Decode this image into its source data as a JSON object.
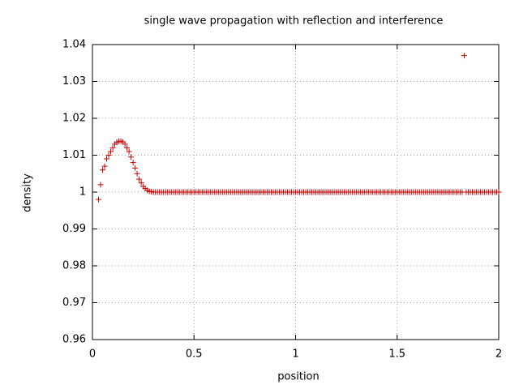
{
  "chart_data": {
    "type": "scatter",
    "title": "single wave propagation with reflection and interference",
    "xlabel": "position",
    "ylabel": "density",
    "color": "#cc0000",
    "grid": true,
    "xlim": [
      0,
      2
    ],
    "ylim": [
      0.96,
      1.04
    ],
    "xticks": [
      0,
      0.5,
      1,
      1.5,
      2
    ],
    "yticks": [
      0.96,
      0.97,
      0.98,
      0.99,
      1,
      1.01,
      1.02,
      1.03,
      1.04
    ],
    "x": [
      0.03,
      0.04,
      0.05,
      0.06,
      0.07,
      0.08,
      0.09,
      0.1,
      0.11,
      0.12,
      0.13,
      0.14,
      0.15,
      0.16,
      0.17,
      0.18,
      0.19,
      0.2,
      0.21,
      0.22,
      0.23,
      0.24,
      0.25,
      0.26,
      0.27,
      0.28,
      0.29,
      0.3,
      0.31,
      0.32,
      0.33,
      0.34,
      0.35,
      0.36,
      0.37,
      0.38,
      0.39,
      0.4,
      0.41,
      0.42,
      0.43,
      0.44,
      0.45,
      0.46,
      0.47,
      0.48,
      0.49,
      0.5,
      0.51,
      0.52,
      0.53,
      0.54,
      0.55,
      0.56,
      0.57,
      0.58,
      0.59,
      0.6,
      0.61,
      0.62,
      0.63,
      0.64,
      0.65,
      0.66,
      0.67,
      0.68,
      0.69,
      0.7,
      0.71,
      0.72,
      0.73,
      0.74,
      0.75,
      0.76,
      0.77,
      0.78,
      0.79,
      0.8,
      0.81,
      0.82,
      0.83,
      0.84,
      0.85,
      0.86,
      0.87,
      0.88,
      0.89,
      0.9,
      0.91,
      0.92,
      0.93,
      0.94,
      0.95,
      0.96,
      0.97,
      0.98,
      0.99,
      1,
      1.01,
      1.02,
      1.03,
      1.04,
      1.05,
      1.06,
      1.07,
      1.08,
      1.09,
      1.1,
      1.11,
      1.12,
      1.13,
      1.14,
      1.15,
      1.16,
      1.17,
      1.18,
      1.19,
      1.2,
      1.21,
      1.22,
      1.23,
      1.24,
      1.25,
      1.26,
      1.27,
      1.28,
      1.29,
      1.3,
      1.31,
      1.32,
      1.33,
      1.34,
      1.35,
      1.36,
      1.37,
      1.38,
      1.39,
      1.4,
      1.41,
      1.42,
      1.43,
      1.44,
      1.45,
      1.46,
      1.47,
      1.48,
      1.49,
      1.5,
      1.51,
      1.52,
      1.53,
      1.54,
      1.55,
      1.56,
      1.57,
      1.58,
      1.59,
      1.6,
      1.61,
      1.62,
      1.63,
      1.64,
      1.65,
      1.66,
      1.67,
      1.68,
      1.69,
      1.7,
      1.71,
      1.72,
      1.73,
      1.74,
      1.75,
      1.76,
      1.77,
      1.78,
      1.79,
      1.8,
      1.81,
      1.82,
      1.83,
      1.84,
      1.85,
      1.86,
      1.87,
      1.88,
      1.89,
      1.9,
      1.91,
      1.92,
      1.93,
      1.94,
      1.95,
      1.96,
      1.97,
      1.98,
      1.99,
      2
    ],
    "values": [
      0.998,
      1.002,
      1.006,
      1.007,
      1.009,
      1.01,
      1.011,
      1.012,
      1.013,
      1.0135,
      1.0138,
      1.0138,
      1.0136,
      1.013,
      1.012,
      1.011,
      1.0095,
      1.008,
      1.0065,
      1.005,
      1.0035,
      1.0025,
      1.0015,
      1.001,
      1.0005,
      1.0002,
      1.0001,
      1,
      1,
      1,
      1,
      1,
      1,
      1,
      1,
      1,
      1,
      1,
      1,
      1,
      1,
      1,
      1,
      1,
      1,
      1,
      1,
      1,
      1,
      1,
      1,
      1,
      1,
      1,
      1,
      1,
      1,
      1,
      1,
      1,
      1,
      1,
      1,
      1,
      1,
      1,
      1,
      1,
      1,
      1,
      1,
      1,
      1,
      1,
      1,
      1,
      1,
      1,
      1,
      1,
      1,
      1,
      1,
      1,
      1,
      1,
      1,
      1,
      1,
      1,
      1,
      1,
      1,
      1,
      1,
      1,
      1,
      1,
      1,
      1,
      1,
      1,
      1,
      1,
      1,
      1,
      1,
      1,
      1,
      1,
      1,
      1,
      1,
      1,
      1,
      1,
      1,
      1,
      1,
      1,
      1,
      1,
      1,
      1,
      1,
      1,
      1,
      1,
      1,
      1,
      1,
      1,
      1,
      1,
      1,
      1,
      1,
      1,
      1,
      1,
      1,
      1,
      1,
      1,
      1,
      1,
      1,
      1,
      1,
      1,
      1,
      1,
      1,
      1,
      1,
      1,
      1,
      1,
      1,
      1,
      1,
      1,
      1,
      1,
      1,
      1,
      1,
      1,
      1,
      1,
      1,
      1,
      1,
      1,
      1,
      1,
      1,
      1,
      1,
      1,
      1.037,
      1,
      1,
      1,
      1,
      1,
      1,
      1,
      1,
      1,
      1,
      1,
      1,
      1,
      1,
      1,
      1,
      1
    ]
  }
}
